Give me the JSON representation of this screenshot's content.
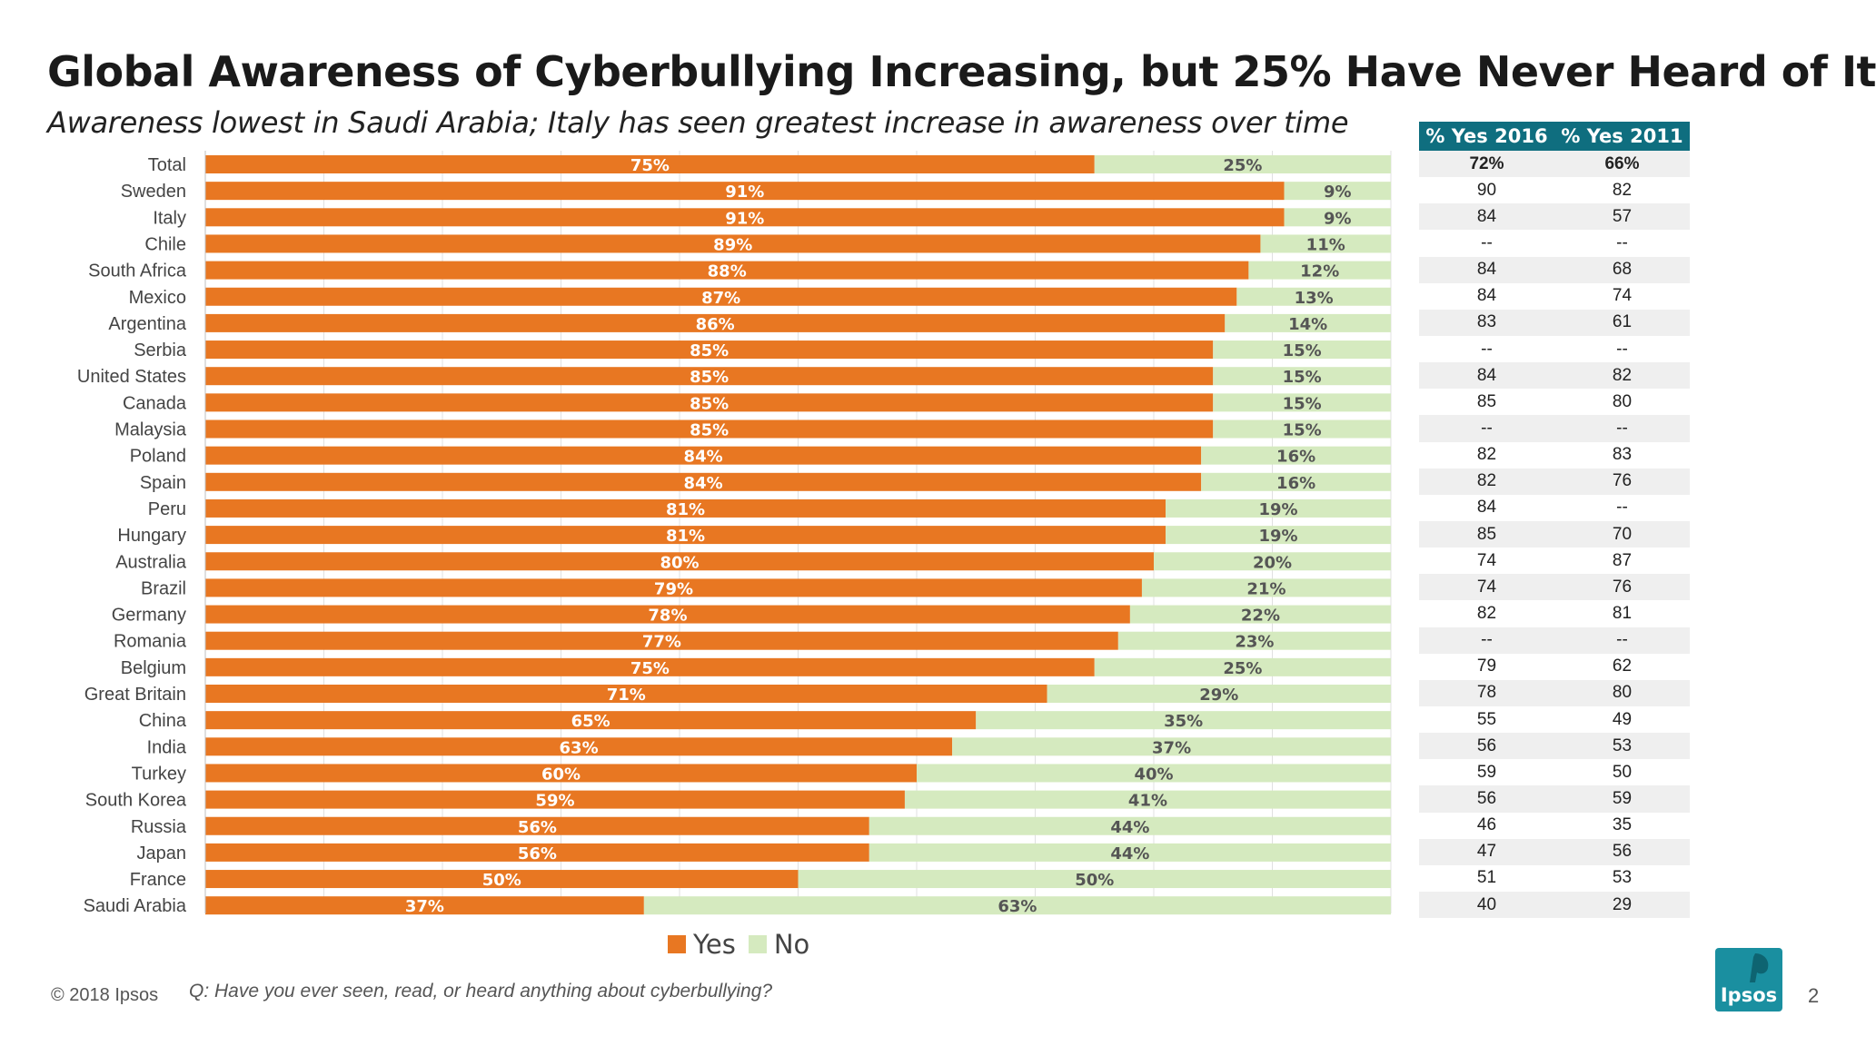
{
  "title": "Global Awareness of Cyberbullying Increasing, but 25% Have Never Heard of It",
  "subtitle": "Awareness lowest in Saudi Arabia; Italy has seen greatest increase in awareness over time",
  "colors": {
    "yes": "#e87722",
    "no": "#d5eabf",
    "table_header": "#0f6e7f",
    "logo": "#1a8fa0"
  },
  "chart_data": {
    "type": "bar",
    "orientation": "horizontal",
    "stacked": true,
    "percent": true,
    "categories": [
      "Total",
      "Sweden",
      "Italy",
      "Chile",
      "South Africa",
      "Mexico",
      "Argentina",
      "Serbia",
      "United States",
      "Canada",
      "Malaysia",
      "Poland",
      "Spain",
      "Peru",
      "Hungary",
      "Australia",
      "Brazil",
      "Germany",
      "Romania",
      "Belgium",
      "Great Britain",
      "China",
      "India",
      "Turkey",
      "South Korea",
      "Russia",
      "Japan",
      "France",
      "Saudi Arabia"
    ],
    "series": [
      {
        "name": "Yes",
        "values": [
          75,
          91,
          91,
          89,
          88,
          87,
          86,
          85,
          85,
          85,
          85,
          84,
          84,
          81,
          81,
          80,
          79,
          78,
          77,
          75,
          71,
          65,
          63,
          60,
          59,
          56,
          56,
          50,
          37
        ]
      },
      {
        "name": "No",
        "values": [
          25,
          9,
          9,
          11,
          12,
          13,
          14,
          15,
          15,
          15,
          15,
          16,
          16,
          19,
          19,
          20,
          21,
          22,
          23,
          25,
          29,
          35,
          37,
          40,
          41,
          44,
          44,
          50,
          63
        ]
      }
    ],
    "xlim": [
      0,
      100
    ],
    "grid": true,
    "legend_position": "bottom"
  },
  "table": {
    "headers": [
      "% Yes 2016",
      "% Yes 2011"
    ],
    "rows": [
      [
        "72%",
        "66%"
      ],
      [
        "90",
        "82"
      ],
      [
        "84",
        "57"
      ],
      [
        "--",
        "--"
      ],
      [
        "84",
        "68"
      ],
      [
        "84",
        "74"
      ],
      [
        "83",
        "61"
      ],
      [
        "--",
        "--"
      ],
      [
        "84",
        "82"
      ],
      [
        "85",
        "80"
      ],
      [
        "--",
        "--"
      ],
      [
        "82",
        "83"
      ],
      [
        "82",
        "76"
      ],
      [
        "84",
        "--"
      ],
      [
        "85",
        "70"
      ],
      [
        "74",
        "87"
      ],
      [
        "74",
        "76"
      ],
      [
        "82",
        "81"
      ],
      [
        "--",
        "--"
      ],
      [
        "79",
        "62"
      ],
      [
        "78",
        "80"
      ],
      [
        "55",
        "49"
      ],
      [
        "56",
        "53"
      ],
      [
        "59",
        "50"
      ],
      [
        "56",
        "59"
      ],
      [
        "46",
        "35"
      ],
      [
        "47",
        "56"
      ],
      [
        "51",
        "53"
      ],
      [
        "40",
        "29"
      ]
    ]
  },
  "footer": {
    "copyright": "© 2018 Ipsos",
    "question": "Q: Have you ever seen, read, or heard anything about cyberbullying?",
    "logo_text": "Ipsos",
    "page_number": "2"
  }
}
